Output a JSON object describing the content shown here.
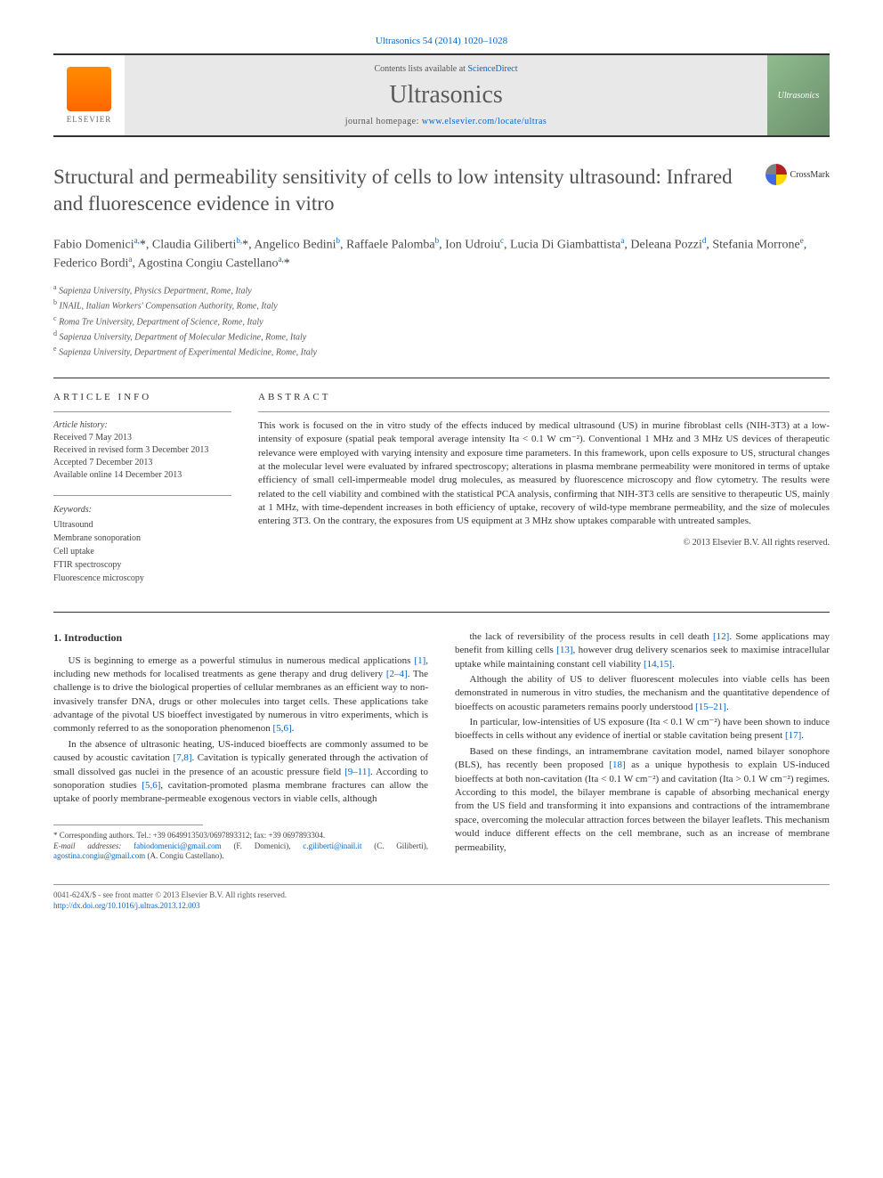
{
  "citation": "Ultrasonics 54 (2014) 1020–1028",
  "header": {
    "contents_prefix": "Contents lists available at ",
    "contents_link": "ScienceDirect",
    "journal_name": "Ultrasonics",
    "homepage_prefix": "journal homepage: ",
    "homepage_url": "www.elsevier.com/locate/ultras",
    "elsevier_label": "ELSEVIER",
    "cover_label": "Ultrasonics"
  },
  "crossmark_label": "CrossMark",
  "title": "Structural and permeability sensitivity of cells to low intensity ultrasound: Infrared and fluorescence evidence in vitro",
  "authors_html": "Fabio Domenici<sup>a,</sup><span class='asterisk'>*</span>, Claudia Giliberti<sup>b,</sup><span class='asterisk'>*</span>, Angelico Bedini<sup>b</sup>, Raffaele Palomba<sup>b</sup>, Ion Udroiu<sup>c</sup>, Lucia Di Giambattista<sup>a</sup>, Deleana Pozzi<sup>d</sup>, Stefania Morrone<sup>e</sup>, Federico Bordi<sup>a</sup>, Agostina Congiu Castellano<sup>a,</sup><span class='asterisk'>*</span>",
  "affiliations": [
    "a Sapienza University, Physics Department, Rome, Italy",
    "b INAIL, Italian Workers' Compensation Authority, Rome, Italy",
    "c Roma Tre University, Department of Science, Rome, Italy",
    "d Sapienza University, Department of Molecular Medicine, Rome, Italy",
    "e Sapienza University, Department of Experimental Medicine, Rome, Italy"
  ],
  "article_info": {
    "label": "ARTICLE INFO",
    "history_label": "Article history:",
    "history": [
      "Received 7 May 2013",
      "Received in revised form 3 December 2013",
      "Accepted 7 December 2013",
      "Available online 14 December 2013"
    ],
    "keywords_label": "Keywords:",
    "keywords": [
      "Ultrasound",
      "Membrane sonoporation",
      "Cell uptake",
      "FTIR spectroscopy",
      "Fluorescence microscopy"
    ]
  },
  "abstract": {
    "label": "ABSTRACT",
    "text": "This work is focused on the in vitro study of the effects induced by medical ultrasound (US) in murine fibroblast cells (NIH-3T3) at a low-intensity of exposure (spatial peak temporal average intensity Ita < 0.1 W cm⁻²). Conventional 1 MHz and 3 MHz US devices of therapeutic relevance were employed with varying intensity and exposure time parameters. In this framework, upon cells exposure to US, structural changes at the molecular level were evaluated by infrared spectroscopy; alterations in plasma membrane permeability were monitored in terms of uptake efficiency of small cell-impermeable model drug molecules, as measured by fluorescence microscopy and flow cytometry. The results were related to the cell viability and combined with the statistical PCA analysis, confirming that NIH-3T3 cells are sensitive to therapeutic US, mainly at 1 MHz, with time-dependent increases in both efficiency of uptake, recovery of wild-type membrane permeability, and the size of molecules entering 3T3. On the contrary, the exposures from US equipment at 3 MHz show uptakes comparable with untreated samples.",
    "copyright": "© 2013 Elsevier B.V. All rights reserved."
  },
  "body": {
    "intro_heading": "1. Introduction",
    "col1": [
      "US is beginning to emerge as a powerful stimulus in numerous medical applications [1], including new methods for localised treatments as gene therapy and drug delivery [2–4]. The challenge is to drive the biological properties of cellular membranes as an efficient way to non-invasively transfer DNA, drugs or other molecules into target cells. These applications take advantage of the pivotal US bioeffect investigated by numerous in vitro experiments, which is commonly referred to as the sonoporation phenomenon [5,6].",
      "In the absence of ultrasonic heating, US-induced bioeffects are commonly assumed to be caused by acoustic cavitation [7,8]. Cavitation is typically generated through the activation of small dissolved gas nuclei in the presence of an acoustic pressure field [9–11]. According to sonoporation studies [5,6], cavitation-promoted plasma membrane fractures can allow the uptake of poorly membrane-permeable exogenous vectors in viable cells, although"
    ],
    "col2": [
      "the lack of reversibility of the process results in cell death [12]. Some applications may benefit from killing cells [13], however drug delivery scenarios seek to maximise intracellular uptake while maintaining constant cell viability [14,15].",
      "Although the ability of US to deliver fluorescent molecules into viable cells has been demonstrated in numerous in vitro studies, the mechanism and the quantitative dependence of bioeffects on acoustic parameters remains poorly understood [15–21].",
      "In particular, low-intensities of US exposure (Ita < 0.1 W cm⁻²) have been shown to induce bioeffects in cells without any evidence of inertial or stable cavitation being present [17].",
      "Based on these findings, an intramembrane cavitation model, named bilayer sonophore (BLS), has recently been proposed [18] as a unique hypothesis to explain US-induced bioeffects at both non-cavitation (Ita < 0.1 W cm⁻²) and cavitation (Ita > 0.1 W cm⁻²) regimes. According to this model, the bilayer membrane is capable of absorbing mechanical energy from the US field and transforming it into expansions and contractions of the intramembrane space, overcoming the molecular attraction forces between the bilayer leaflets. This mechanism would induce different effects on the cell membrane, such as an increase of membrane permeability,"
    ]
  },
  "footnote": {
    "corresponding": "* Corresponding authors. Tel.: +39 0649913503/0697893312; fax: +39 0697893304.",
    "emails_prefix": "E-mail addresses: ",
    "emails": "fabiodomenici@gmail.com (F. Domenici), c.giliberti@inail.it (C. Giliberti), agostina.congiu@gmail.com (A. Congiu Castellano)."
  },
  "footer": {
    "line1": "0041-624X/$ - see front matter © 2013 Elsevier B.V. All rights reserved.",
    "doi": "http://dx.doi.org/10.1016/j.ultras.2013.12.003"
  },
  "colors": {
    "link": "#0066cc",
    "text": "#333333",
    "muted": "#555555",
    "heading": "#505050"
  }
}
